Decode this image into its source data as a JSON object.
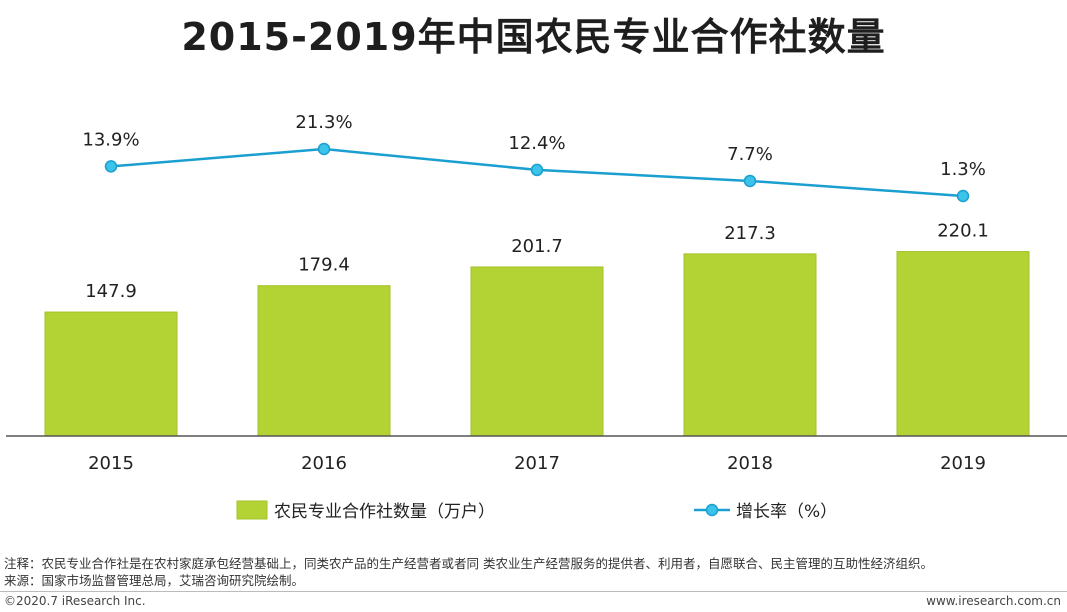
{
  "title": "2015-2019年中国农民专业合作社数量",
  "chart_data": {
    "type": "bar",
    "categories": [
      "2015",
      "2016",
      "2017",
      "2018",
      "2019"
    ],
    "series": [
      {
        "name": "农民专业合作社数量（万户）",
        "type": "bar",
        "values": [
          147.9,
          179.4,
          201.7,
          217.3,
          220.1
        ],
        "labels": [
          "147.9",
          "179.4",
          "201.7",
          "217.3",
          "220.1"
        ],
        "color": "#b3d334"
      },
      {
        "name": "增长率（%）",
        "type": "line",
        "values": [
          13.9,
          21.3,
          12.4,
          7.7,
          1.3
        ],
        "labels": [
          "13.9%",
          "21.3%",
          "12.4%",
          "7.7%",
          "1.3%"
        ],
        "color": "#1b9fd0"
      }
    ],
    "legend_position": "bottom",
    "grid": false
  },
  "footer": {
    "note": "注释：农民专业合作社是在农村家庭承包经营基础上，同类农产品的生产经营者或者同 类农业生产经营服务的提供者、利用者，自愿联合、民主管理的互助性经济组织。",
    "source": "来源：国家市场监督管理总局，艾瑞咨询研究院绘制。",
    "copyright": "©2020.7 iResearch Inc.",
    "website": "www.iresearch.com.cn"
  }
}
